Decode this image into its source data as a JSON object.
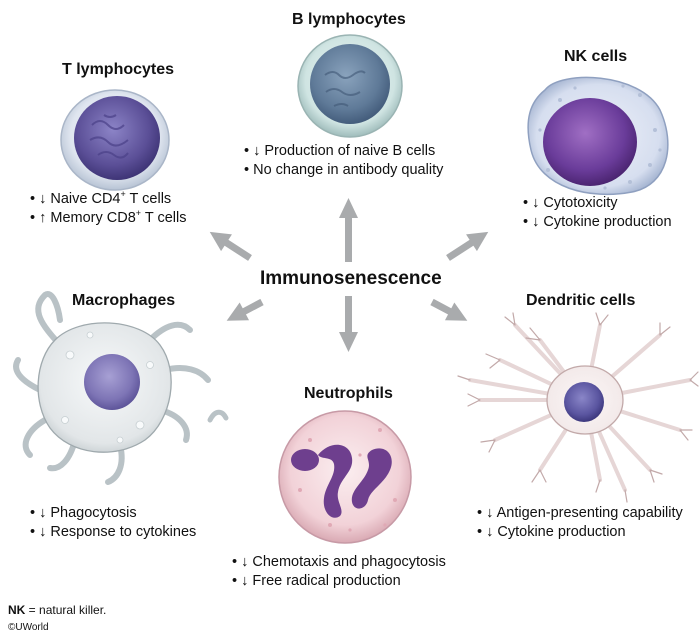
{
  "center_label": "Immunosenescence",
  "cells": {
    "t_lymphocytes": {
      "title": "T lymphocytes",
      "items": [
        {
          "prefix": "• ↓ Naive CD4",
          "sup": "+",
          "suffix": " T cells"
        },
        {
          "prefix": "• ↑ Memory CD8",
          "sup": "+",
          "suffix": " T cells"
        }
      ]
    },
    "b_lymphocytes": {
      "title": "B lymphocytes",
      "items": [
        "• ↓ Production of naive B cells",
        "• No change in antibody quality"
      ]
    },
    "nk_cells": {
      "title": "NK cells",
      "items": [
        "• ↓ Cytotoxicity",
        "• ↓ Cytokine production"
      ]
    },
    "macrophages": {
      "title": "Macrophages",
      "items": [
        "• ↓ Phagocytosis",
        "• ↓ Response to cytokines"
      ]
    },
    "neutrophils": {
      "title": "Neutrophils",
      "items": [
        "• ↓ Chemotaxis and phagocytosis",
        "• ↓ Free radical production"
      ]
    },
    "dendritic_cells": {
      "title": "Dendritic cells",
      "items": [
        "• ↓ Antigen-presenting capability",
        "• ↓ Cytokine production"
      ]
    }
  },
  "footnote": {
    "abbr": "NK",
    "text": " = natural killer."
  },
  "copyright": "©UWorld",
  "colors": {
    "arrow": "#a9abad",
    "lymphocyte_nucleus": "#5b4f97",
    "nk_nucleus": "#6a3c9a",
    "neutrophil_cytoplasm": "#f2d2d8",
    "neutrophil_nucleus": "#6e3f8e",
    "macrophage_body": "#e2e6e8",
    "dendritic_body": "#f3eaea"
  }
}
